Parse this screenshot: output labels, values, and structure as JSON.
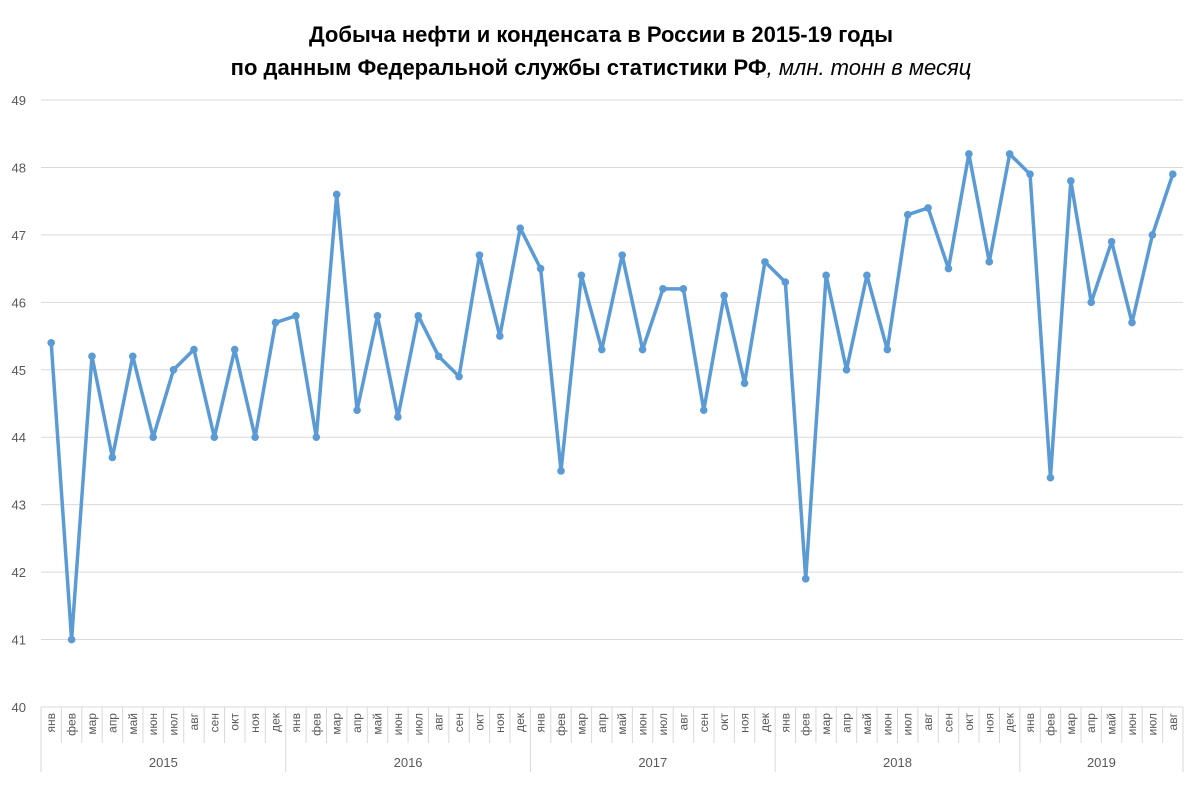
{
  "chart_data": {
    "type": "line",
    "title": "Добыча нефти и конденсата в России в 2015-19 годы",
    "title_line2": "по данным Федеральной службы статистики РФ",
    "title_unit": ", млн. тонн в месяц",
    "ylim": [
      40,
      49
    ],
    "yticks": [
      "40",
      "41",
      "42",
      "43",
      "44",
      "45",
      "46",
      "47",
      "48",
      "49"
    ],
    "grid": true,
    "color": "#5B9BD5",
    "years": [
      {
        "label": "2015",
        "count": 12
      },
      {
        "label": "2016",
        "count": 12
      },
      {
        "label": "2017",
        "count": 12
      },
      {
        "label": "2018",
        "count": 12
      },
      {
        "label": "2019",
        "count": 8
      }
    ],
    "categories": [
      "янв",
      "фев",
      "мар",
      "апр",
      "май",
      "июн",
      "июл",
      "авг",
      "сен",
      "окт",
      "ноя",
      "дек",
      "янв",
      "фев",
      "мар",
      "апр",
      "май",
      "июн",
      "июл",
      "авг",
      "сен",
      "окт",
      "ноя",
      "дек",
      "янв",
      "фев",
      "мар",
      "апр",
      "май",
      "июн",
      "июл",
      "авг",
      "сен",
      "окт",
      "ноя",
      "дек",
      "янв",
      "фев",
      "мар",
      "апр",
      "май",
      "июн",
      "июл",
      "авг",
      "сен",
      "окт",
      "ноя",
      "дек",
      "янв",
      "фев",
      "мар",
      "апр",
      "май",
      "июн",
      "июл",
      "авг"
    ],
    "values": [
      45.4,
      41.0,
      45.2,
      43.7,
      45.2,
      44.0,
      45.0,
      45.3,
      44.0,
      45.3,
      44.0,
      45.7,
      45.8,
      44.0,
      47.6,
      44.4,
      45.8,
      44.3,
      45.8,
      45.2,
      44.9,
      46.7,
      45.5,
      47.1,
      46.5,
      43.5,
      46.4,
      45.3,
      46.7,
      45.3,
      46.2,
      46.2,
      44.4,
      46.1,
      44.8,
      46.6,
      46.3,
      41.9,
      46.4,
      45.0,
      46.4,
      45.3,
      47.3,
      47.4,
      46.5,
      48.2,
      46.6,
      48.2,
      47.9,
      43.4,
      47.8,
      46.0,
      46.9,
      45.7,
      47.0,
      47.9
    ]
  }
}
